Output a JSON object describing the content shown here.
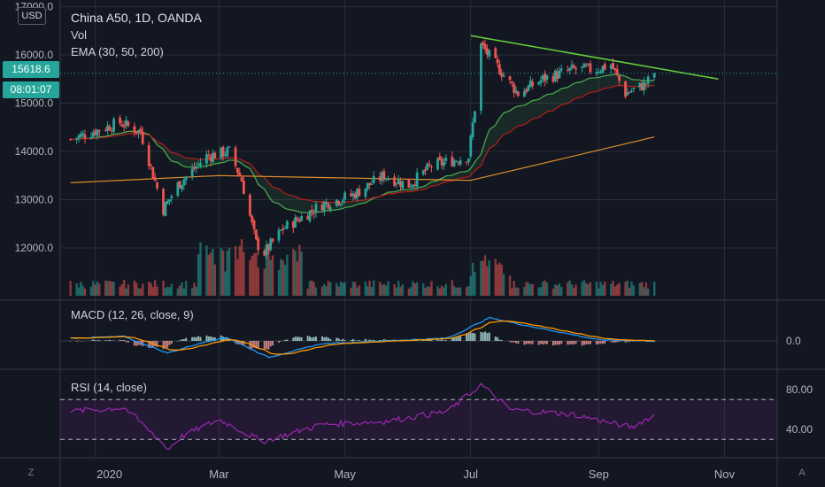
{
  "header": {
    "currency": "USD",
    "title": "China A50, 1D, OANDA",
    "vol_label": "Vol",
    "ema_label": "EMA (30, 50, 200)",
    "macd_label": "MACD (12, 26, close, 9)",
    "rsi_label": "RSI (14, close)",
    "last_price": "15618.6",
    "countdown": "08:01:07",
    "left_corner": "Z",
    "right_corner": "A"
  },
  "colors": {
    "background": "#131722",
    "grid": "#2a2e39",
    "up": "#26a69a",
    "down": "#ef5350",
    "ema30": "#4caf50",
    "ema50": "#b71c1c",
    "ema200": "#e0902a",
    "trendline": "#66d33a",
    "macd": "#2196f3",
    "signal": "#ff9800",
    "rsi": "#9c27b0",
    "price_tag": "#26a69a"
  },
  "chart_data": [
    {
      "type": "candlestick",
      "symbol": "China A50",
      "interval": "1D",
      "source": "OANDA",
      "x_ticks": [
        "2020",
        "Mar",
        "May",
        "Jul",
        "Sep",
        "Nov"
      ],
      "y_ticks": [
        12000.0,
        13000.0,
        14000.0,
        15000.0,
        16000.0,
        17000.0
      ],
      "y_range": [
        11000,
        17000
      ],
      "last_price": 15618.6,
      "price_path": [
        [
          "2019-12-20",
          14250
        ],
        [
          "2020-01-13",
          14600
        ],
        [
          "2020-01-23",
          14400
        ],
        [
          "2020-02-03",
          12800
        ],
        [
          "2020-02-10",
          13300
        ],
        [
          "2020-02-24",
          13900
        ],
        [
          "2020-03-06",
          14000
        ],
        [
          "2020-03-12",
          13400
        ],
        [
          "2020-03-19",
          12100
        ],
        [
          "2020-03-23",
          11900
        ],
        [
          "2020-04-01",
          12400
        ],
        [
          "2020-04-20",
          12900
        ],
        [
          "2020-05-05",
          13100
        ],
        [
          "2020-05-20",
          13500
        ],
        [
          "2020-06-01",
          13300
        ],
        [
          "2020-06-12",
          13700
        ],
        [
          "2020-06-30",
          13900
        ],
        [
          "2020-07-03",
          14900
        ],
        [
          "2020-07-06",
          16200
        ],
        [
          "2020-07-15",
          15700
        ],
        [
          "2020-07-24",
          15200
        ],
        [
          "2020-08-05",
          15500
        ],
        [
          "2020-08-20",
          15700
        ],
        [
          "2020-08-31",
          15700
        ],
        [
          "2020-09-07",
          15800
        ],
        [
          "2020-09-14",
          15200
        ],
        [
          "2020-09-24",
          15400
        ],
        [
          "2020-09-28",
          15618.6
        ]
      ],
      "ema_200_path": [
        [
          "2019-12-20",
          13350
        ],
        [
          "2020-03-01",
          13500
        ],
        [
          "2020-07-01",
          13400
        ],
        [
          "2020-09-28",
          14300
        ]
      ],
      "trendline": [
        [
          "2020-07-01",
          16400
        ],
        [
          "2020-10-29",
          15500
        ]
      ]
    },
    {
      "type": "bar",
      "name": "Vol"
    },
    {
      "type": "line",
      "name": "MACD (12, 26, close, 9)",
      "y_ticks": [
        0.0
      ],
      "macd_path": [
        [
          "2019-12-20",
          5
        ],
        [
          "2020-01-15",
          8
        ],
        [
          "2020-02-05",
          -22
        ],
        [
          "2020-02-25",
          0
        ],
        [
          "2020-03-05",
          6
        ],
        [
          "2020-03-25",
          -30
        ],
        [
          "2020-04-20",
          -5
        ],
        [
          "2020-05-20",
          0
        ],
        [
          "2020-06-20",
          5
        ],
        [
          "2020-07-10",
          42
        ],
        [
          "2020-08-05",
          22
        ],
        [
          "2020-09-01",
          2
        ],
        [
          "2020-09-28",
          0
        ]
      ]
    },
    {
      "type": "line",
      "name": "RSI (14, close)",
      "y_ticks": [
        40.0,
        80.0
      ],
      "levels": [
        70,
        30
      ],
      "rsi_path": [
        [
          "2019-12-20",
          58
        ],
        [
          "2020-01-15",
          62
        ],
        [
          "2020-02-01",
          30
        ],
        [
          "2020-02-05",
          20
        ],
        [
          "2020-02-12",
          33
        ],
        [
          "2020-03-01",
          50
        ],
        [
          "2020-03-22",
          28
        ],
        [
          "2020-04-20",
          45
        ],
        [
          "2020-05-20",
          48
        ],
        [
          "2020-06-20",
          58
        ],
        [
          "2020-07-06",
          85
        ],
        [
          "2020-07-20",
          60
        ],
        [
          "2020-08-20",
          55
        ],
        [
          "2020-09-17",
          42
        ],
        [
          "2020-09-28",
          55
        ]
      ]
    }
  ]
}
